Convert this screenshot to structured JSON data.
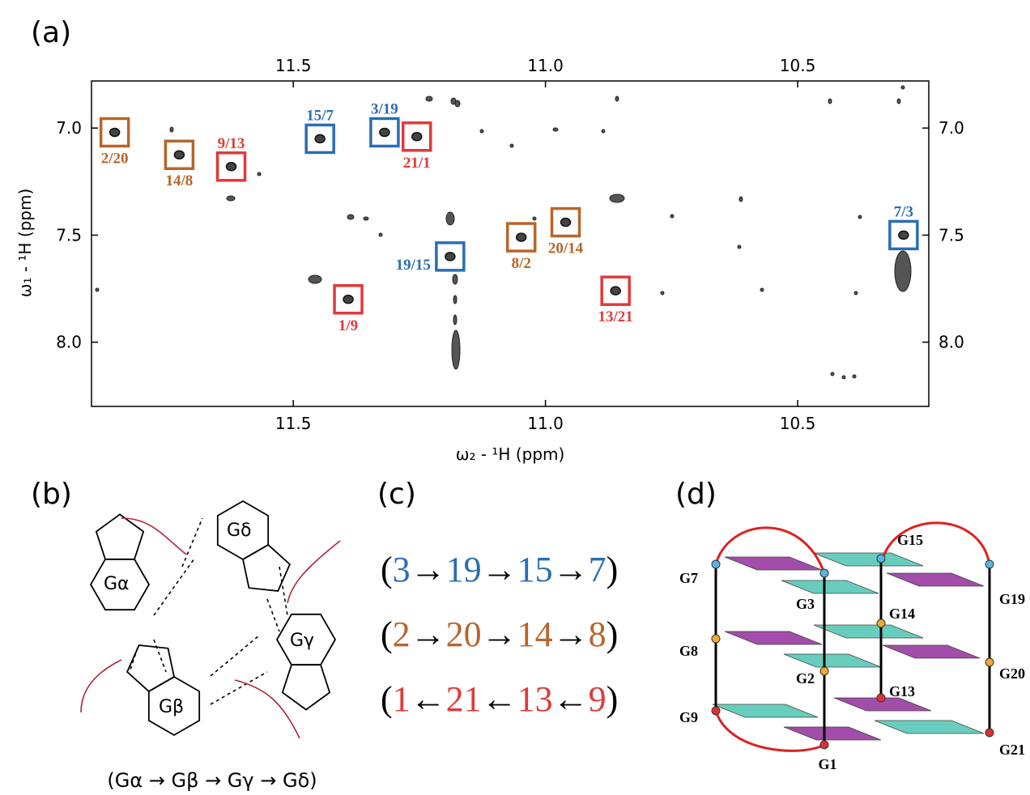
{
  "panel_labels": [
    "(a)",
    "(b)",
    "(c)",
    "(d)"
  ],
  "chart_data": {
    "type": "scatter",
    "xlabel": "ω₂ - ¹H  (ppm)",
    "ylabel": "ω₁ - ¹H  (ppm)",
    "xlim": [
      11.9,
      10.24
    ],
    "ylim": [
      6.78,
      8.3
    ],
    "xticks": [
      11.5,
      {
        "value": 11,
        "label": "11.0"
      },
      10.5
    ],
    "yticks": [
      {
        "value": 7,
        "label": "7.0"
      },
      7.5,
      {
        "value": 8,
        "label": "8.0"
      }
    ],
    "series": [
      {
        "color": "#2a6db5",
        "labels": [
          "15/7",
          "3/19",
          "19/15",
          "7/3"
        ],
        "x": [
          11.447,
          11.319,
          11.189,
          10.29
        ],
        "values": [
          7.05,
          7.02,
          7.6,
          7.5
        ]
      },
      {
        "color": "#b8652a",
        "labels": [
          "2/20",
          "14/8",
          "8/2",
          "20/14"
        ],
        "x": [
          11.854,
          11.726,
          11.048,
          10.96
        ],
        "values": [
          7.02,
          7.125,
          7.51,
          7.44
        ]
      },
      {
        "color": "#e03a3a",
        "labels": [
          "9/13",
          "21/1",
          "1/9",
          "13/21"
        ],
        "x": [
          11.623,
          11.255,
          11.391,
          10.861
        ],
        "values": [
          7.18,
          7.04,
          7.8,
          7.76
        ]
      }
    ]
  },
  "panel_b": {
    "labels": [
      "Gα",
      "Gβ",
      "Gγ",
      "Gδ"
    ],
    "caption": "(Gα → Gβ → Gγ → Gδ)"
  },
  "panel_c": {
    "rows": [
      {
        "open": "(",
        "nodes": [
          "3",
          "19",
          "15",
          "7"
        ],
        "arrow": "→",
        "close": ")",
        "color": "#2a6db5"
      },
      {
        "open": "(",
        "nodes": [
          "2",
          "20",
          "14",
          "8"
        ],
        "arrow": "→",
        "close": ")",
        "color": "#b8652a"
      },
      {
        "open": "(",
        "nodes": [
          "1",
          "21",
          "13",
          "9"
        ],
        "arrow": "←",
        "close": ")",
        "color": "#e03a3a"
      }
    ]
  },
  "panel_d": {
    "nodes": [
      {
        "label": "G7",
        "color": "#57b5e3"
      },
      {
        "label": "G3",
        "color": "#57b5e3"
      },
      {
        "label": "G15",
        "color": "#57b5e3"
      },
      {
        "label": "G19",
        "color": "#57b5e3"
      },
      {
        "label": "G8",
        "color": "#f0a830"
      },
      {
        "label": "G2",
        "color": "#f0a830"
      },
      {
        "label": "G14",
        "color": "#f0a830"
      },
      {
        "label": "G20",
        "color": "#f0a830"
      },
      {
        "label": "G9",
        "color": "#e03030"
      },
      {
        "label": "G1",
        "color": "#e03030"
      },
      {
        "label": "G13",
        "color": "#e03030"
      },
      {
        "label": "G21",
        "color": "#e03030"
      }
    ]
  }
}
